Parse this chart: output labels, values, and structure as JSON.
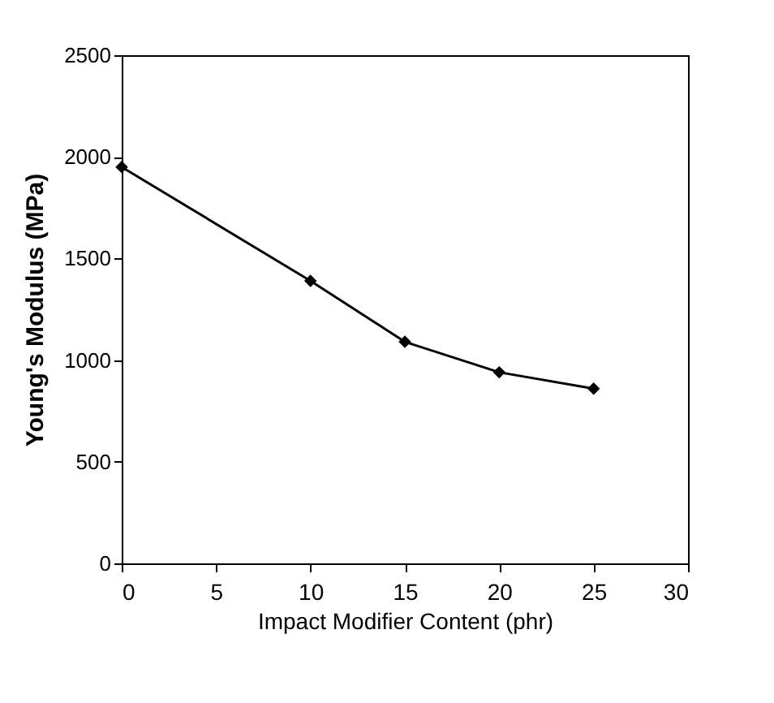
{
  "chart_data": {
    "type": "line",
    "xlabel": "Impact Modifier Content (phr)",
    "ylabel": "Young's Modulus (MPa)",
    "x": [
      0,
      10,
      15,
      20,
      25
    ],
    "series": [
      {
        "color": "#000000",
        "values": [
          1950,
          1390,
          1090,
          940,
          860
        ]
      }
    ],
    "xlim": [
      0,
      30
    ],
    "xticks": [
      0,
      5,
      10,
      15,
      20,
      25,
      30
    ],
    "ylim": [
      0,
      2500
    ],
    "yticks": [
      0,
      500,
      1000,
      1500,
      2000,
      2500
    ],
    "grid": false,
    "marker": "diamond",
    "line_style": "solid"
  }
}
